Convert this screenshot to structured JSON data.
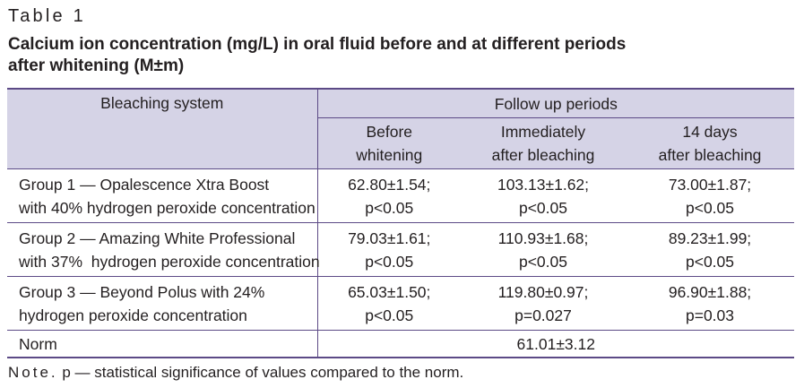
{
  "table_label": "Table 1",
  "caption_line1": "Calcium ion concentration (mg/L) in oral fluid before and at different periods",
  "caption_line2": "after whitening (M±m)",
  "header": {
    "bleaching_system": "Bleaching system",
    "follow_up": "Follow up periods",
    "periods": [
      {
        "line1": "Before",
        "line2": "whitening"
      },
      {
        "line1": "Immediately",
        "line2": "after bleaching"
      },
      {
        "line1": "14 days",
        "line2": "after bleaching"
      }
    ]
  },
  "rows": [
    {
      "group_line1": "Group 1 — Opalescence Xtra Boost",
      "group_line2": "with 40% hydrogen peroxide concentration",
      "values": [
        {
          "mean": "62.80±1.54;",
          "p": "p<0.05"
        },
        {
          "mean": "103.13±1.62;",
          "p": "p<0.05"
        },
        {
          "mean": "73.00±1.87;",
          "p": "p<0.05"
        }
      ]
    },
    {
      "group_line1": "Group 2 — Amazing White Professional",
      "group_line2": "with 37%  hydrogen peroxide concentration",
      "values": [
        {
          "mean": "79.03±1.61;",
          "p": "p<0.05"
        },
        {
          "mean": "110.93±1.68;",
          "p": "p<0.05"
        },
        {
          "mean": "89.23±1.99;",
          "p": "p<0.05"
        }
      ]
    },
    {
      "group_line1": "Group 3 — Beyond Polus with 24%",
      "group_line2": "hydrogen peroxide concentration",
      "values": [
        {
          "mean": "65.03±1.50;",
          "p": "p<0.05"
        },
        {
          "mean": "119.80±0.97;",
          "p": "p=0.027"
        },
        {
          "mean": "96.90±1.88;",
          "p": "p=0.03"
        }
      ]
    }
  ],
  "norm": {
    "label": "Norm",
    "value": "61.01±3.12"
  },
  "note": {
    "word": "Note.",
    "text": "p — statistical significance of values compared to the norm."
  },
  "colors": {
    "header_bg": "#d5d3e6",
    "rule": "#5c4a86"
  }
}
